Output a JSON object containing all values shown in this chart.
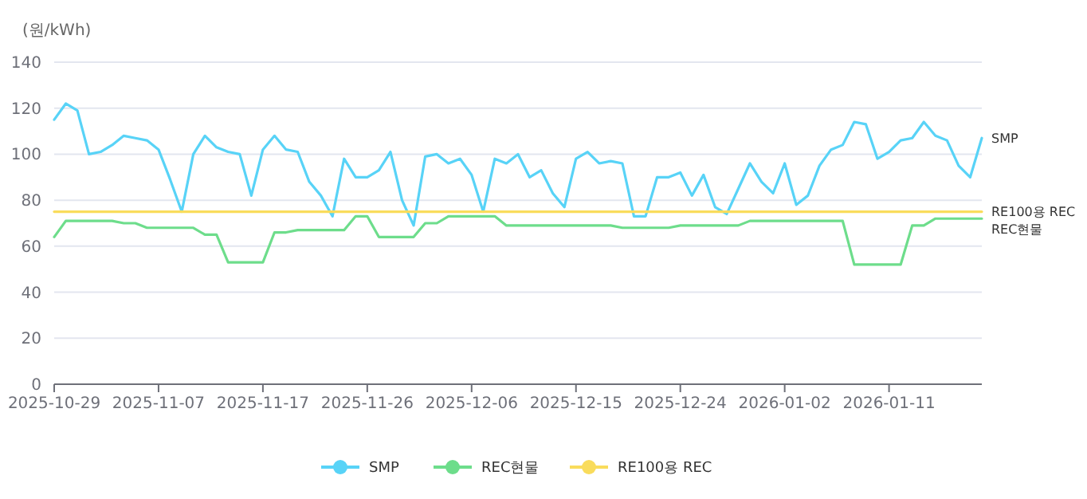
{
  "chart_data": {
    "type": "line",
    "ylabel": "(원/kWh)",
    "categories": [
      "2025-10-29",
      null,
      null,
      null,
      null,
      null,
      null,
      null,
      null,
      "2025-11-07",
      null,
      null,
      null,
      null,
      null,
      null,
      null,
      null,
      "2025-11-17",
      null,
      null,
      null,
      null,
      null,
      null,
      null,
      null,
      "2025-11-26",
      null,
      null,
      null,
      null,
      null,
      null,
      null,
      null,
      "2025-12-06",
      null,
      null,
      null,
      null,
      null,
      null,
      null,
      null,
      "2025-12-15",
      null,
      null,
      null,
      null,
      null,
      null,
      null,
      null,
      "2025-12-24",
      null,
      null,
      null,
      null,
      null,
      null,
      null,
      null,
      "2026-01-02",
      null,
      null,
      null,
      null,
      null,
      null,
      null,
      null,
      "2026-01-11",
      null,
      null,
      null,
      null,
      null,
      null,
      null,
      null
    ],
    "series": [
      {
        "name": "SMP",
        "color": "#58d3f7",
        "values": [
          115,
          122,
          119,
          100,
          101,
          104,
          108,
          107,
          106,
          102,
          89,
          75,
          100,
          108,
          103,
          101,
          100,
          82,
          102,
          108,
          102,
          101,
          88,
          82,
          73,
          98,
          90,
          90,
          93,
          101,
          80,
          69,
          99,
          100,
          96,
          98,
          91,
          75,
          98,
          96,
          100,
          90,
          93,
          83,
          77,
          98,
          101,
          96,
          97,
          96,
          73,
          73,
          90,
          90,
          92,
          82,
          91,
          77,
          74,
          85,
          96,
          88,
          83,
          96,
          78,
          82,
          95,
          102,
          104,
          114,
          113,
          98,
          101,
          106,
          107,
          114,
          108,
          106,
          95,
          90,
          107
        ]
      },
      {
        "name": "REC현물",
        "color": "#6ddd8b",
        "values": [
          64,
          71,
          71,
          71,
          71,
          71,
          70,
          70,
          68,
          68,
          68,
          68,
          68,
          65,
          65,
          53,
          53,
          53,
          53,
          66,
          66,
          67,
          67,
          67,
          67,
          67,
          73,
          73,
          64,
          64,
          64,
          64,
          70,
          70,
          73,
          73,
          73,
          73,
          73,
          69,
          69,
          69,
          69,
          69,
          69,
          69,
          69,
          69,
          69,
          68,
          68,
          68,
          68,
          68,
          69,
          69,
          69,
          69,
          69,
          69,
          71,
          71,
          71,
          71,
          71,
          71,
          71,
          71,
          71,
          52,
          52,
          52,
          52,
          52,
          69,
          69,
          72,
          72,
          72,
          72,
          72
        ]
      },
      {
        "name": "RE100용 REC",
        "color": "#f9dc5c",
        "values": [
          75,
          75,
          75,
          75,
          75,
          75,
          75,
          75,
          75,
          75,
          75,
          75,
          75,
          75,
          75,
          75,
          75,
          75,
          75,
          75,
          75,
          75,
          75,
          75,
          75,
          75,
          75,
          75,
          75,
          75,
          75,
          75,
          75,
          75,
          75,
          75,
          75,
          75,
          75,
          75,
          75,
          75,
          75,
          75,
          75,
          75,
          75,
          75,
          75,
          75,
          75,
          75,
          75,
          75,
          75,
          75,
          75,
          75,
          75,
          75,
          75,
          75,
          75,
          75,
          75,
          75,
          75,
          75,
          75,
          75,
          75,
          75,
          75,
          75,
          75,
          75,
          75,
          75,
          75,
          75,
          75
        ]
      }
    ],
    "ylim": [
      0,
      140
    ],
    "yticks": [
      0,
      20,
      40,
      60,
      80,
      100,
      120,
      140
    ],
    "grid": "y",
    "legend": "bottom"
  }
}
